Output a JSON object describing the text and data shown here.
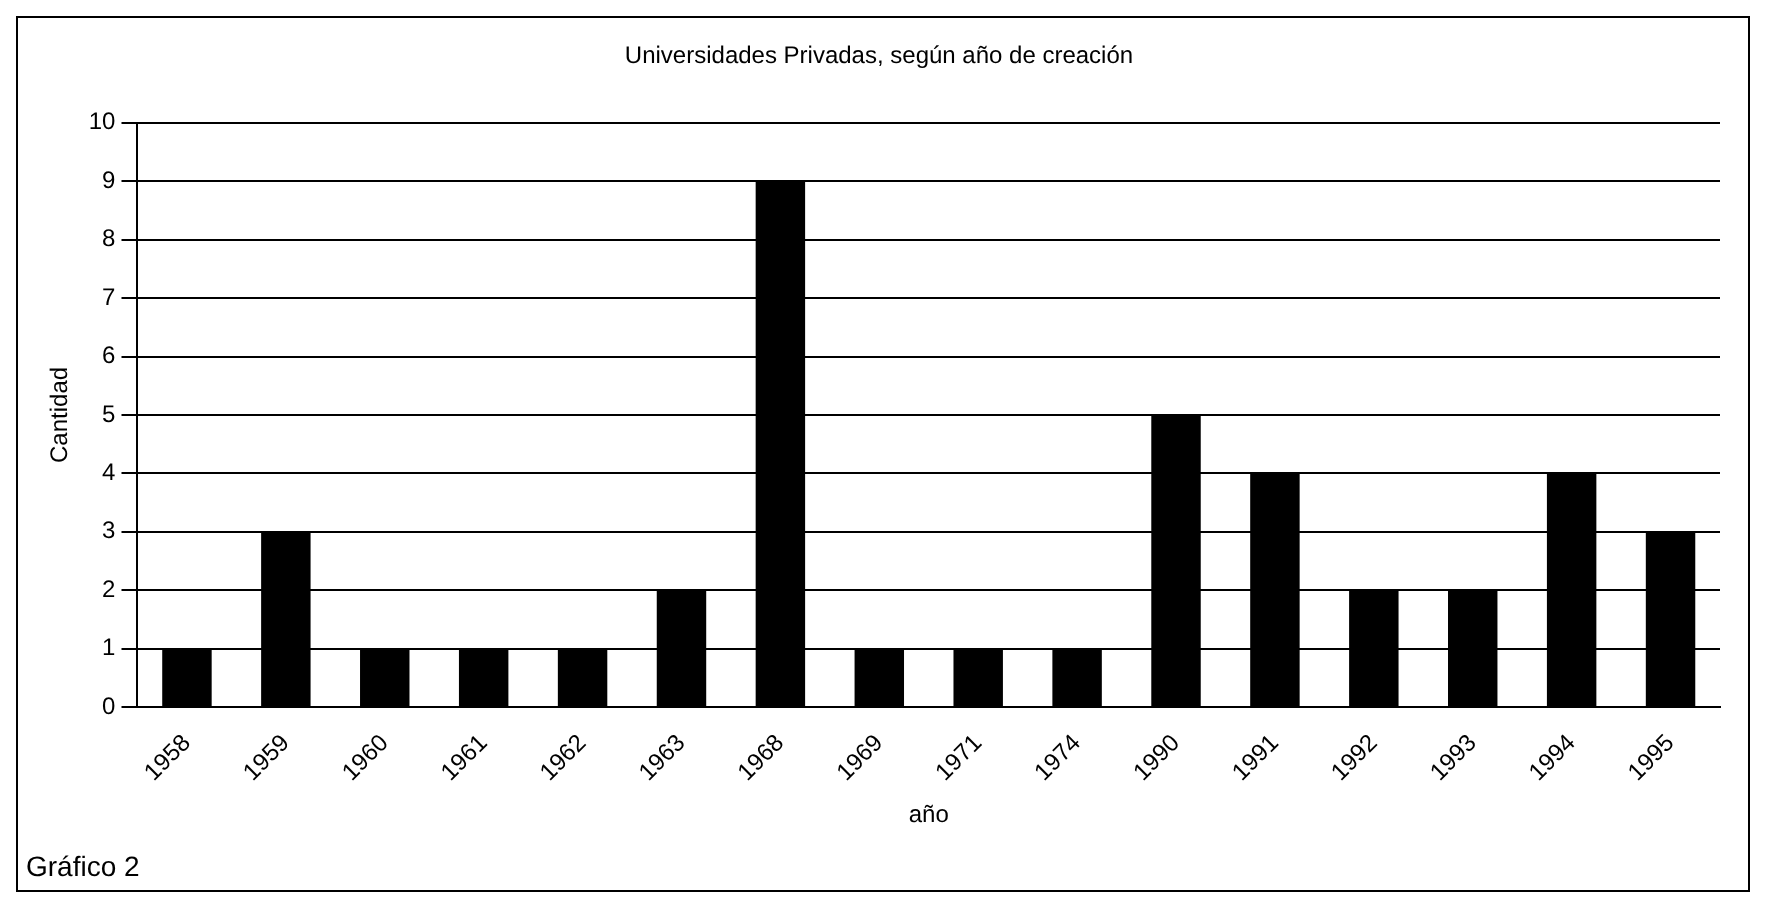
{
  "chart_data": {
    "type": "bar",
    "title": "Universidades Privadas, según año de creación",
    "xlabel": "año",
    "ylabel": "Cantidad",
    "categories": [
      "1958",
      "1959",
      "1960",
      "1961",
      "1962",
      "1963",
      "1968",
      "1969",
      "1971",
      "1974",
      "1990",
      "1991",
      "1992",
      "1993",
      "1994",
      "1995"
    ],
    "values": [
      1,
      3,
      1,
      1,
      1,
      2,
      9,
      1,
      1,
      1,
      5,
      4,
      2,
      2,
      4,
      3
    ],
    "color": "#000000",
    "ylim": [
      0,
      10
    ],
    "yticks": [
      0,
      1,
      2,
      3,
      4,
      5,
      6,
      7,
      8,
      9,
      10
    ],
    "grid": "y",
    "legend": false,
    "annotations": [
      "Gráfico 2"
    ]
  }
}
